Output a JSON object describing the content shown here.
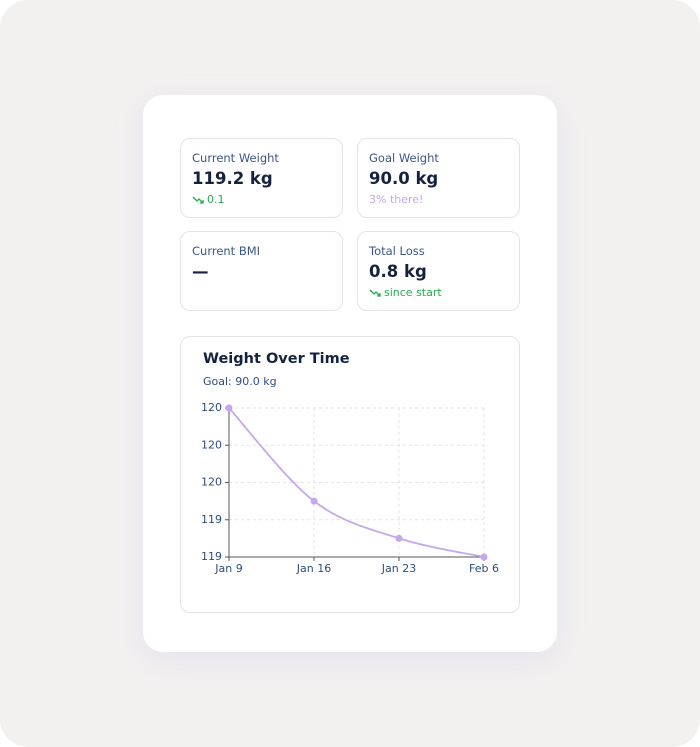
{
  "cards": [
    {
      "label": "Current Weight",
      "value": "119.2 kg",
      "note": "0.1"
    },
    {
      "label": "Goal Weight",
      "value": "90.0 kg",
      "note": "3% there!"
    },
    {
      "label": "Current BMI",
      "value": "—"
    },
    {
      "label": "Total Loss",
      "value": "0.8 kg",
      "note": "since start"
    }
  ],
  "chart_data": {
    "type": "line",
    "title": "Weight Over Time",
    "subtitle": "Goal: 90.0 kg",
    "categories": [
      "Jan 9",
      "Jan 16",
      "Jan 23",
      "Feb 6"
    ],
    "series": [
      {
        "color": "#c5a8ec",
        "values": [
          120.0,
          119.5,
          119.3,
          119.2
        ]
      }
    ],
    "ylim": [
      119.2,
      120.0
    ],
    "yticks": [
      120,
      {
        "value": 119.8,
        "label": "120"
      },
      {
        "value": 119.6,
        "label": "120"
      },
      {
        "value": 119.4,
        "label": "119"
      },
      {
        "value": 119.2,
        "label": "119"
      }
    ],
    "grid": true
  }
}
